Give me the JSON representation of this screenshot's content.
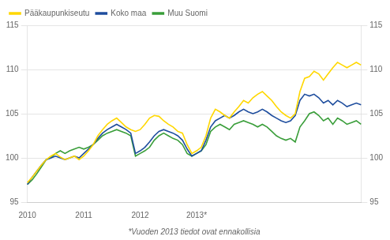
{
  "chart_data": {
    "type": "line",
    "annotations": [
      "*Vuoden 2013 tiedot ovat ennakollisia"
    ],
    "categories": [
      "2010",
      null,
      null,
      null,
      null,
      null,
      null,
      null,
      null,
      null,
      null,
      null,
      "2011",
      null,
      null,
      null,
      null,
      null,
      null,
      null,
      null,
      null,
      null,
      null,
      "2012",
      null,
      null,
      null,
      null,
      null,
      null,
      null,
      null,
      null,
      null,
      null,
      "2013*",
      null,
      null,
      null,
      null,
      null,
      null,
      null,
      null,
      null,
      null,
      null,
      null,
      null,
      null,
      null,
      null,
      null,
      null,
      null,
      null,
      null,
      null,
      null,
      null,
      null,
      null,
      null,
      null,
      null,
      null,
      null,
      null,
      null,
      null,
      null
    ],
    "series": [
      {
        "name": "Pääkaupunkiseutu",
        "color": "#FFD700",
        "values": [
          97.2,
          97.8,
          98.5,
          99.2,
          99.8,
          100.2,
          100.5,
          100.1,
          99.8,
          100.0,
          100.2,
          99.8,
          100.2,
          100.8,
          101.5,
          102.5,
          103.2,
          103.8,
          104.2,
          104.5,
          104.0,
          103.5,
          103.2,
          103.0,
          103.2,
          103.8,
          104.5,
          104.8,
          104.7,
          104.2,
          103.8,
          103.5,
          103.0,
          102.8,
          101.5,
          100.5,
          100.8,
          101.2,
          102.5,
          104.5,
          105.5,
          105.2,
          104.8,
          104.5,
          105.2,
          105.8,
          106.5,
          106.2,
          106.8,
          107.2,
          107.5,
          107.0,
          106.5,
          105.8,
          105.2,
          104.8,
          104.5,
          105.0,
          107.5,
          109.0,
          109.2,
          109.8,
          109.5,
          108.8,
          109.5,
          110.2,
          110.8,
          110.5,
          110.2,
          110.5,
          110.8,
          110.5
        ]
      },
      {
        "name": "Koko maa",
        "color": "#1F4E9E",
        "values": [
          97.0,
          97.8,
          98.5,
          99.2,
          99.8,
          100.0,
          100.2,
          100.0,
          99.8,
          100.0,
          100.2,
          100.0,
          100.5,
          101.0,
          101.5,
          102.2,
          102.8,
          103.2,
          103.5,
          103.8,
          103.5,
          103.2,
          102.8,
          100.5,
          100.8,
          101.2,
          101.8,
          102.5,
          103.0,
          103.2,
          103.0,
          102.8,
          102.5,
          102.0,
          101.0,
          100.2,
          100.5,
          100.8,
          102.0,
          103.5,
          104.2,
          104.5,
          104.8,
          104.5,
          104.8,
          105.2,
          105.5,
          105.2,
          105.0,
          105.2,
          105.5,
          105.2,
          104.8,
          104.5,
          104.2,
          104.0,
          104.2,
          104.8,
          106.5,
          107.2,
          107.0,
          107.2,
          106.8,
          106.2,
          106.5,
          106.0,
          106.5,
          106.2,
          105.8,
          106.0,
          106.2,
          106.0
        ]
      },
      {
        "name": "Muu Suomi",
        "color": "#3A9E3A",
        "values": [
          97.0,
          97.5,
          98.2,
          99.0,
          99.8,
          100.0,
          100.5,
          100.8,
          100.5,
          100.8,
          101.0,
          101.2,
          101.0,
          101.2,
          101.5,
          102.0,
          102.5,
          102.8,
          103.0,
          103.2,
          103.0,
          102.8,
          102.5,
          100.2,
          100.5,
          100.8,
          101.2,
          102.0,
          102.5,
          102.8,
          102.5,
          102.2,
          102.0,
          101.5,
          100.5,
          100.2,
          100.5,
          100.8,
          101.5,
          103.0,
          103.5,
          103.8,
          103.5,
          103.2,
          103.8,
          104.0,
          104.2,
          104.0,
          103.8,
          103.5,
          103.8,
          103.5,
          103.0,
          102.5,
          102.2,
          102.0,
          102.2,
          101.8,
          103.5,
          104.2,
          105.0,
          105.2,
          104.8,
          104.2,
          104.5,
          103.8,
          104.5,
          104.2,
          103.8,
          104.0,
          104.2,
          103.8
        ]
      }
    ],
    "ylim": [
      95,
      115
    ],
    "yticks": [
      95,
      100,
      105,
      110,
      115
    ],
    "y2lim": [
      95,
      115
    ],
    "y2ticks": [
      95,
      100,
      105,
      110,
      115
    ],
    "grid": "y",
    "legend": "upper left"
  }
}
